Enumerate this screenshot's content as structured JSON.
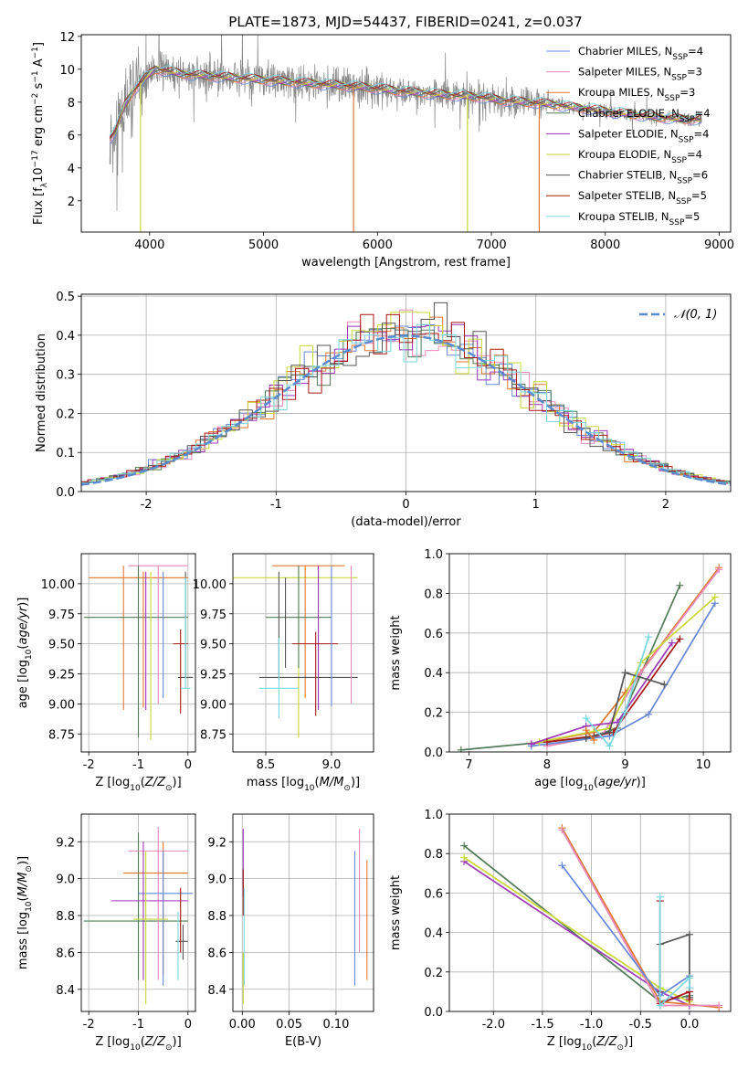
{
  "figure": {
    "title": "PLATE=1873, MJD=54437, FIBERID=0241, z=0.037"
  },
  "colors": {
    "cm": "#6688d8",
    "sm": "#e888b8",
    "km": "#e07830",
    "ce": "#507a58",
    "se": "#9a38b8",
    "ke": "#c8d838",
    "cs": "#555555",
    "ss": "#a81818",
    "ks": "#78d8e0",
    "spectrum": "#888888",
    "normal": "#5a8ad0",
    "grid": "#b0b0b0"
  },
  "chart_data": [
    {
      "id": "spectrum",
      "type": "line",
      "xlabel": "wavelength [Angstrom, rest frame]",
      "ylabel": "Flux [f_λ10^-17 erg cm^-2 s^-1 A^-1]",
      "xlim": [
        3400,
        9100
      ],
      "ylim": [
        0.1,
        12.1
      ],
      "xticks": [
        4000,
        5000,
        6000,
        7000,
        8000,
        9000
      ],
      "yticks": [
        2,
        4,
        6,
        8,
        10,
        12
      ],
      "legend_position": "top-right",
      "series": [
        {
          "key": "cm",
          "name": "Chabrier MILES, N_SSP=4"
        },
        {
          "key": "sm",
          "name": "Salpeter MILES, N_SSP=3"
        },
        {
          "key": "km",
          "name": "Kroupa MILES, N_SSP=3"
        },
        {
          "key": "ce",
          "name": "Chabrier ELODIE, N_SSP=4"
        },
        {
          "key": "se",
          "name": "Salpeter ELODIE, N_SSP=4"
        },
        {
          "key": "ke",
          "name": "Kroupa ELODIE, N_SSP=4"
        },
        {
          "key": "cs",
          "name": "Chabrier STELIB, N_SSP=6"
        },
        {
          "key": "ss",
          "name": "Salpeter STELIB, N_SSP=5"
        },
        {
          "key": "ks",
          "name": "Kroupa STELIB, N_SSP=5"
        }
      ],
      "continuum": {
        "x": [
          3650,
          3700,
          3780,
          3850,
          3950,
          4050,
          4150,
          4300,
          4500,
          4700,
          4900,
          5100,
          5300,
          5500,
          5700,
          5900,
          6100,
          6300,
          6500,
          6700,
          6900,
          7100,
          7300,
          7500,
          7700,
          7900,
          8100,
          8300,
          8500,
          8700,
          8850
        ],
        "y": [
          5.8,
          6.2,
          7.8,
          8.6,
          9.4,
          10.0,
          9.9,
          9.7,
          9.6,
          9.5,
          9.4,
          9.3,
          9.2,
          9.1,
          9.0,
          8.9,
          8.75,
          8.6,
          8.5,
          8.4,
          8.3,
          8.1,
          8.0,
          7.9,
          7.7,
          7.55,
          7.35,
          7.2,
          7.05,
          6.95,
          6.95
        ]
      },
      "model_dips": [
        {
          "x": 3920,
          "y": 0.1,
          "key": "ke"
        },
        {
          "x": 5790,
          "y": 0.1,
          "key": "km"
        },
        {
          "x": 6790,
          "y": 0.1,
          "key": "ke"
        },
        {
          "x": 7420,
          "y": 0.1,
          "key": "km"
        }
      ]
    },
    {
      "id": "residuals",
      "type": "area",
      "xlabel": "(data-model)/error",
      "ylabel": "Normed distribution",
      "xlim": [
        -2.5,
        2.5
      ],
      "ylim": [
        0,
        0.505
      ],
      "xticks": [
        -2,
        -1,
        0,
        1,
        2
      ],
      "yticks": [
        0.0,
        0.1,
        0.2,
        0.3,
        0.4,
        0.5
      ],
      "legend_position": "top-right",
      "normal_label": "𝒩(0, 1)",
      "bin_width": 0.1,
      "grid": true
    },
    {
      "id": "age-vs-Z",
      "type": "scatter",
      "xlabel": "Z [log10(Z/Z⊙)]",
      "ylabel": "age  [log10(age/yr)]",
      "xlim": [
        -2.15,
        0.15
      ],
      "ylim": [
        8.6,
        10.25
      ],
      "xticks": [
        -2,
        -1,
        0
      ],
      "yticks": [
        8.75,
        9.0,
        9.25,
        9.5,
        9.75,
        10.0
      ],
      "grid": true,
      "errorbars": [
        {
          "key": "km",
          "x": -1.3,
          "xlo": -2.0,
          "xhi": 0.0,
          "y": 10.05,
          "ylo": 8.95,
          "yhi": 10.15
        },
        {
          "key": "sm",
          "x": -0.6,
          "xlo": -1.2,
          "xhi": 0.0,
          "y": 10.15,
          "ylo": 9.0,
          "yhi": 10.15
        },
        {
          "key": "ce",
          "x": -1.0,
          "xlo": -2.1,
          "xhi": 0.0,
          "y": 9.72,
          "ylo": 8.72,
          "yhi": 10.15
        },
        {
          "key": "cm",
          "x": -0.5,
          "xlo": -0.5,
          "xhi": -0.5,
          "y": 9.5,
          "ylo": 9.05,
          "yhi": 10.1
        },
        {
          "key": "se",
          "x": -0.85,
          "xlo": -0.85,
          "xhi": -0.85,
          "y": 9.2,
          "ylo": 8.95,
          "yhi": 10.1
        },
        {
          "key": "ke",
          "x": -0.75,
          "xlo": -0.75,
          "xhi": -0.75,
          "y": 9.5,
          "ylo": 8.7,
          "yhi": 10.1
        },
        {
          "key": "cs",
          "x": -0.05,
          "xlo": -0.2,
          "xhi": 0.1,
          "y": 9.22,
          "ylo": 9.22,
          "yhi": 10.1
        },
        {
          "key": "ss",
          "x": -0.15,
          "xlo": -0.3,
          "xhi": 0.0,
          "y": 9.5,
          "ylo": 8.92,
          "yhi": 9.62
        },
        {
          "key": "ks",
          "x": -0.05,
          "xlo": -0.15,
          "xhi": 0.05,
          "y": 9.13,
          "ylo": 9.13,
          "yhi": 10.05
        },
        {
          "key": "km",
          "x": -0.9,
          "xlo": -0.9,
          "xhi": -0.9,
          "y": 9.5,
          "ylo": 8.97,
          "yhi": 10.1
        }
      ]
    },
    {
      "id": "age-vs-mass",
      "type": "scatter",
      "xlabel": "mass [log10(M/M⊙)]",
      "ylabel": "",
      "xlim": [
        8.25,
        9.32
      ],
      "ylim": [
        8.6,
        10.25
      ],
      "xticks": [
        8.5,
        9.0
      ],
      "yticks": [
        8.75,
        9.0,
        9.25,
        9.5,
        9.75,
        10.0
      ],
      "grid": true,
      "errorbars": [
        {
          "key": "ke",
          "x": 8.75,
          "xlo": 8.25,
          "xhi": 9.2,
          "y": 10.05,
          "ylo": 8.72,
          "yhi": 10.15
        },
        {
          "key": "km",
          "x": 8.8,
          "xlo": 8.55,
          "xhi": 9.1,
          "y": 10.15,
          "ylo": 9.05,
          "yhi": 10.15
        },
        {
          "key": "ce",
          "x": 8.75,
          "xlo": 8.5,
          "xhi": 9.0,
          "y": 9.72,
          "ylo": 9.3,
          "yhi": 10.15
        },
        {
          "key": "se",
          "x": 8.9,
          "xlo": 8.9,
          "xhi": 8.9,
          "y": 9.5,
          "ylo": 8.95,
          "yhi": 10.15
        },
        {
          "key": "cs",
          "x": 8.6,
          "xlo": 8.45,
          "xhi": 9.2,
          "y": 9.22,
          "ylo": 9.22,
          "yhi": 10.1
        },
        {
          "key": "ks",
          "x": 8.6,
          "xlo": 8.45,
          "xhi": 8.75,
          "y": 9.13,
          "ylo": 8.88,
          "yhi": 9.55
        },
        {
          "key": "ss",
          "x": 8.88,
          "xlo": 8.7,
          "xhi": 9.05,
          "y": 9.5,
          "ylo": 8.9,
          "yhi": 9.6
        },
        {
          "key": "sm",
          "x": 9.15,
          "xlo": 9.15,
          "xhi": 9.15,
          "y": 9.7,
          "ylo": 9.0,
          "yhi": 10.15
        },
        {
          "key": "cm",
          "x": 9.0,
          "xlo": 9.0,
          "xhi": 9.0,
          "y": 9.5,
          "ylo": 8.98,
          "yhi": 10.15
        },
        {
          "key": "cs",
          "x": 8.65,
          "xlo": 8.65,
          "xhi": 8.65,
          "y": 9.6,
          "ylo": 9.3,
          "yhi": 10.05
        }
      ]
    },
    {
      "id": "massweight-vs-age",
      "type": "line",
      "xlabel": "age  [log10(age/yr)]",
      "ylabel": "mass weight",
      "xlim": [
        6.75,
        10.35
      ],
      "ylim": [
        0.0,
        1.0
      ],
      "xticks": [
        7,
        8,
        9,
        10
      ],
      "yticks": [
        0.0,
        0.2,
        0.4,
        0.6,
        0.8,
        1.0
      ],
      "grid": true,
      "series": [
        {
          "key": "ce",
          "x": [
            6.9,
            8.5,
            8.9,
            9.7
          ],
          "y": [
            0.01,
            0.07,
            0.12,
            0.84
          ]
        },
        {
          "key": "km",
          "x": [
            7.8,
            8.6,
            9.0,
            10.2
          ],
          "y": [
            0.04,
            0.1,
            0.3,
            0.93
          ]
        },
        {
          "key": "sm",
          "x": [
            8.0,
            8.7,
            9.2,
            10.2
          ],
          "y": [
            0.03,
            0.08,
            0.4,
            0.92
          ]
        },
        {
          "key": "cm",
          "x": [
            7.8,
            8.8,
            9.3,
            10.15
          ],
          "y": [
            0.03,
            0.08,
            0.19,
            0.75
          ]
        },
        {
          "key": "ke",
          "x": [
            7.9,
            8.8,
            9.2,
            10.15
          ],
          "y": [
            0.05,
            0.12,
            0.45,
            0.78
          ]
        },
        {
          "key": "se",
          "x": [
            7.8,
            8.5,
            8.9,
            9.6
          ],
          "y": [
            0.04,
            0.13,
            0.15,
            0.55
          ]
        },
        {
          "key": "ss",
          "x": [
            8.0,
            8.6,
            8.85,
            9.7
          ],
          "y": [
            0.05,
            0.08,
            0.1,
            0.57
          ]
        },
        {
          "key": "cs",
          "x": [
            8.5,
            8.8,
            9.0,
            9.5
          ],
          "y": [
            0.07,
            0.1,
            0.4,
            0.34
          ]
        },
        {
          "key": "ks",
          "x": [
            8.5,
            8.8,
            9.0,
            9.3
          ],
          "y": [
            0.17,
            0.03,
            0.2,
            0.58
          ]
        },
        {
          "key": "km",
          "x": [
            8.5,
            8.6
          ],
          "y": [
            0.11,
            0.06
          ]
        }
      ]
    },
    {
      "id": "mass-vs-Z",
      "type": "scatter",
      "xlabel": "Z [log10(Z/Z⊙)]",
      "ylabel": "mass [log10(M/M⊙)]",
      "xlim": [
        -2.15,
        0.15
      ],
      "ylim": [
        8.28,
        9.35
      ],
      "xticks": [
        -2,
        -1,
        0
      ],
      "yticks": [
        8.4,
        8.6,
        8.8,
        9.0,
        9.2
      ],
      "grid": true,
      "errorbars": [
        {
          "key": "ce",
          "x": -1.0,
          "xlo": -2.1,
          "xhi": 0.0,
          "y": 8.77,
          "ylo": 8.45,
          "yhi": 9.25
        },
        {
          "key": "sm",
          "x": -0.6,
          "xlo": -1.2,
          "xhi": 0.0,
          "y": 9.15,
          "ylo": 8.45,
          "yhi": 9.28
        },
        {
          "key": "km",
          "x": -0.5,
          "xlo": -1.3,
          "xhi": 0.0,
          "y": 9.03,
          "ylo": 8.48,
          "yhi": 9.2
        },
        {
          "key": "cm",
          "x": -0.5,
          "xlo": -1.0,
          "xhi": 0.1,
          "y": 8.92,
          "ylo": 8.42,
          "yhi": 9.15
        },
        {
          "key": "se",
          "x": -0.9,
          "xlo": -1.55,
          "xhi": 0.0,
          "y": 8.88,
          "ylo": 8.45,
          "yhi": 9.2
        },
        {
          "key": "ke",
          "x": -0.85,
          "xlo": -1.1,
          "xhi": -0.4,
          "y": 8.78,
          "ylo": 8.32,
          "yhi": 9.15
        },
        {
          "key": "cs",
          "x": -0.1,
          "xlo": -0.25,
          "xhi": 0.0,
          "y": 8.66,
          "ylo": 8.56,
          "yhi": 8.75
        },
        {
          "key": "ks",
          "x": -0.2,
          "xlo": -0.2,
          "xhi": -0.2,
          "y": 8.78,
          "ylo": 8.45,
          "yhi": 8.82
        },
        {
          "key": "ss",
          "x": -0.15,
          "xlo": -0.15,
          "xhi": -0.15,
          "y": 8.6,
          "ylo": 8.6,
          "yhi": 8.95
        }
      ]
    },
    {
      "id": "mass-vs-EBV",
      "type": "scatter",
      "xlabel": "E(B-V)",
      "ylabel": "",
      "xlim": [
        -0.01,
        0.14
      ],
      "ylim": [
        8.28,
        9.35
      ],
      "xticks": [
        0.0,
        0.05,
        0.1
      ],
      "yticks": [
        8.4,
        8.6,
        8.8,
        9.0,
        9.2
      ],
      "grid": true,
      "errorbars": [
        {
          "key": "se",
          "x": 0.001,
          "xlo": 0.001,
          "xhi": 0.001,
          "y": 9.0,
          "ylo": 8.9,
          "yhi": 9.27
        },
        {
          "key": "ss",
          "x": 0.001,
          "xlo": 0.001,
          "xhi": 0.001,
          "y": 8.8,
          "ylo": 8.8,
          "yhi": 9.05
        },
        {
          "key": "ks",
          "x": 0.002,
          "xlo": 0.002,
          "xhi": 0.002,
          "y": 8.7,
          "ylo": 8.42,
          "yhi": 8.95
        },
        {
          "key": "ke",
          "x": 0.001,
          "xlo": 0.001,
          "xhi": 0.001,
          "y": 8.5,
          "ylo": 8.32,
          "yhi": 8.6
        },
        {
          "key": "cm",
          "x": 0.12,
          "xlo": 0.12,
          "xhi": 0.12,
          "y": 8.8,
          "ylo": 8.42,
          "yhi": 9.15
        },
        {
          "key": "sm",
          "x": 0.125,
          "xlo": 0.125,
          "xhi": 0.125,
          "y": 8.8,
          "ylo": 8.6,
          "yhi": 9.27
        },
        {
          "key": "km",
          "x": 0.133,
          "xlo": 0.133,
          "xhi": 0.133,
          "y": 8.8,
          "ylo": 8.45,
          "yhi": 9.1
        }
      ]
    },
    {
      "id": "massweight-vs-Z",
      "type": "line",
      "xlabel": "Z [log10(Z/Z⊙)]",
      "ylabel": "mass weight",
      "xlim": [
        -2.45,
        0.42
      ],
      "ylim": [
        0.0,
        1.0
      ],
      "xticks": [
        -2.0,
        -1.5,
        -1.0,
        -0.5,
        0.0
      ],
      "yticks": [
        0.0,
        0.2,
        0.4,
        0.6,
        0.8,
        1.0
      ],
      "grid": true,
      "series": [
        {
          "key": "ce",
          "x": [
            -2.3,
            -0.3,
            0.0
          ],
          "y": [
            0.84,
            0.05,
            0.08
          ]
        },
        {
          "key": "se",
          "x": [
            -2.3,
            -0.3,
            0.0
          ],
          "y": [
            0.76,
            0.1,
            0.03
          ]
        },
        {
          "key": "ke",
          "x": [
            -2.3,
            -0.3,
            0.0
          ],
          "y": [
            0.78,
            0.12,
            0.05
          ]
        },
        {
          "key": "km",
          "x": [
            -1.3,
            -0.3,
            0.3
          ],
          "y": [
            0.93,
            0.05,
            0.02
          ]
        },
        {
          "key": "sm",
          "x": [
            -1.3,
            -0.3,
            0.3
          ],
          "y": [
            0.92,
            0.03,
            0.03
          ]
        },
        {
          "key": "cm",
          "x": [
            -1.3,
            -0.3,
            0.0
          ],
          "y": [
            0.74,
            0.08,
            0.18
          ]
        },
        {
          "key": "cs",
          "x": [
            -0.3,
            -0.3,
            0.0,
            0.0
          ],
          "y": [
            0.1,
            0.34,
            0.39,
            0.07
          ]
        },
        {
          "key": "ss",
          "x": [
            -0.3,
            -0.3,
            0.0,
            0.0
          ],
          "y": [
            0.56,
            0.04,
            0.1,
            0.06
          ]
        },
        {
          "key": "ks",
          "x": [
            -0.3,
            -0.3,
            0.0,
            0.0
          ],
          "y": [
            0.58,
            0.03,
            0.17,
            0.12
          ]
        }
      ]
    }
  ]
}
